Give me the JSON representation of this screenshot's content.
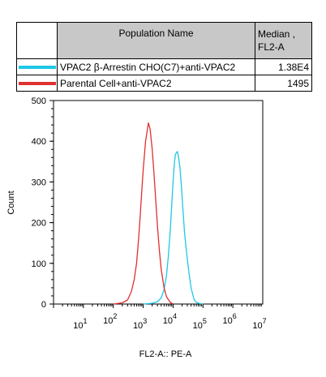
{
  "legend": {
    "header_name": "Population Name",
    "header_median_line1": "Median ,",
    "header_median_line2": "FL2-A",
    "rows": [
      {
        "color": "#1ec8e6",
        "name": "VPAC2 β-Arrestin CHO(C7)+anti-VPAC2",
        "median": "1.38E4"
      },
      {
        "color": "#e03030",
        "name": "Parental Cell+anti-VPAC2",
        "median": "1495"
      }
    ]
  },
  "chart_data": {
    "type": "line",
    "xlabel": "FL2-A:: PE-A",
    "ylabel": "Count",
    "x_scale": "log",
    "xlim": [
      1,
      10000000
    ],
    "ylim": [
      0,
      500
    ],
    "y_ticks": [
      "0",
      "100",
      "200",
      "300",
      "400",
      "500"
    ],
    "x_tick_labels": [
      {
        "base": "10",
        "exp": "1"
      },
      {
        "base": "10",
        "exp": "2"
      },
      {
        "base": "10",
        "exp": "3"
      },
      {
        "base": "10",
        "exp": "4"
      },
      {
        "base": "10",
        "exp": "5"
      },
      {
        "base": "10",
        "exp": "6"
      },
      {
        "base": "10",
        "exp": "7"
      }
    ],
    "series": [
      {
        "name": "VPAC2 β-Arrestin CHO(C7)+anti-VPAC2",
        "color": "#1ec8e6",
        "x": [
          1000,
          2000,
          3000,
          4000,
          5000,
          6000,
          7000,
          8000,
          9000,
          10000,
          11000,
          12000,
          13800,
          15000,
          17000,
          19000,
          21000,
          24000,
          27000,
          30000,
          35000,
          40000,
          50000,
          60000,
          80000,
          100000
        ],
        "y": [
          0,
          2,
          6,
          15,
          35,
          70,
          120,
          180,
          240,
          300,
          345,
          368,
          375,
          365,
          335,
          290,
          240,
          180,
          140,
          110,
          70,
          40,
          12,
          4,
          1,
          0
        ]
      },
      {
        "name": "Parental Cell+anti-VPAC2",
        "color": "#e03030",
        "x": [
          100,
          200,
          300,
          400,
          500,
          600,
          700,
          800,
          900,
          1000,
          1200,
          1495,
          1700,
          2000,
          2300,
          2600,
          3000,
          3500,
          4000,
          5000,
          6000,
          8000,
          10000
        ],
        "y": [
          0,
          3,
          10,
          30,
          60,
          100,
          160,
          220,
          280,
          330,
          400,
          445,
          430,
          380,
          320,
          260,
          190,
          130,
          85,
          40,
          18,
          4,
          0
        ]
      }
    ]
  }
}
